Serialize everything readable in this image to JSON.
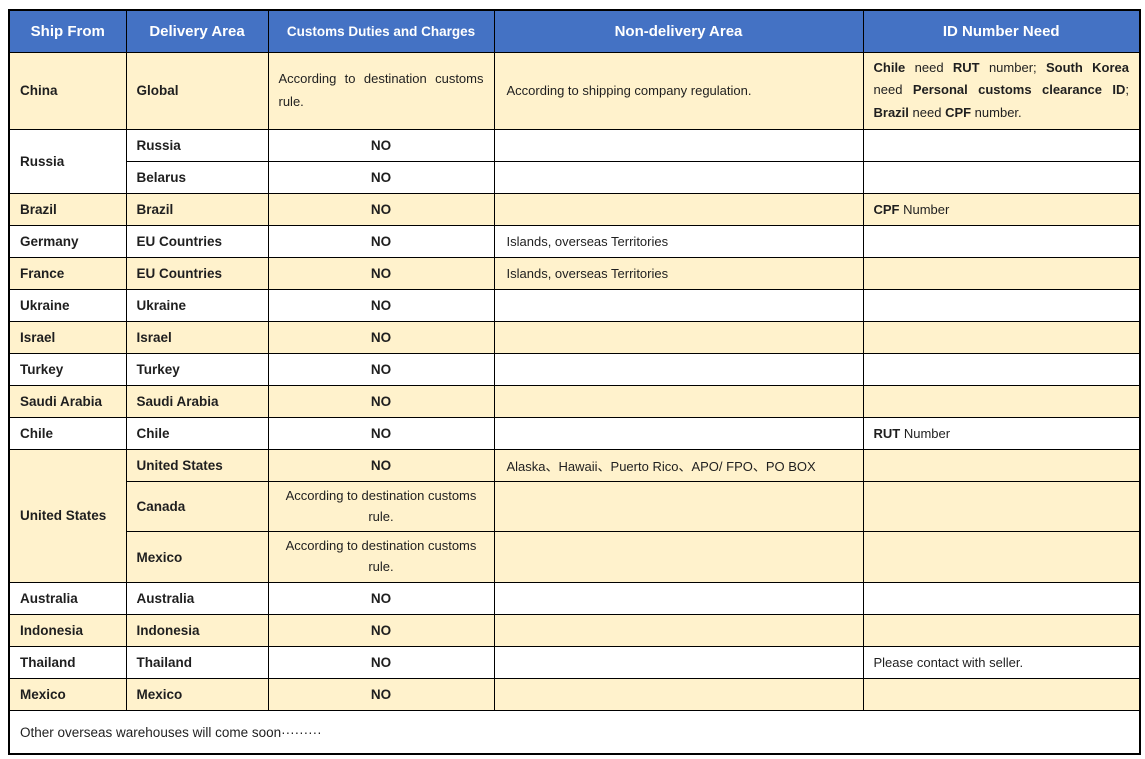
{
  "colors": {
    "header_bg": "#4472C4",
    "header_text": "#FFFFFF",
    "shaded_row_bg": "#FFF2CC",
    "white_row_bg": "#FFFFFF",
    "border": "#000000",
    "body_text": "#1F1F1F"
  },
  "table": {
    "headers": [
      "Ship From",
      "Delivery Area",
      "Customs Duties and Charges",
      "Non-delivery Area",
      "ID Number Need"
    ],
    "rows": [
      {
        "ship_from": {
          "label": "China",
          "rowspan": 1
        },
        "delivery": "Global",
        "customs": {
          "text": "According to destination customs rule.",
          "align": "justify",
          "bold": false
        },
        "non_delivery": "According to shipping company regulation.",
        "id": {
          "justify": true,
          "runs": [
            {
              "text": "Chile",
              "bold": true
            },
            {
              "text": " need ",
              "bold": false
            },
            {
              "text": "RUT",
              "bold": true
            },
            {
              "text": " number; ",
              "bold": false
            },
            {
              "text": "South Korea",
              "bold": true
            },
            {
              "text": " need ",
              "bold": false
            },
            {
              "text": "Personal customs clearance ID",
              "bold": true
            },
            {
              "text": "; ",
              "bold": false
            },
            {
              "text": "Brazil",
              "bold": true
            },
            {
              "text": " need ",
              "bold": false
            },
            {
              "text": "CPF",
              "bold": true
            },
            {
              "text": " number.",
              "bold": false
            }
          ]
        },
        "shaded": true
      },
      {
        "ship_from": {
          "label": "Russia",
          "rowspan": 2
        },
        "delivery": "Russia",
        "customs": {
          "text": "NO",
          "align": "center",
          "bold": true
        },
        "non_delivery": "",
        "id": {
          "justify": false,
          "runs": []
        },
        "shaded": false
      },
      {
        "ship_from": null,
        "delivery": "Belarus",
        "customs": {
          "text": "NO",
          "align": "center",
          "bold": true
        },
        "non_delivery": "",
        "id": {
          "justify": false,
          "runs": []
        },
        "shaded": false
      },
      {
        "ship_from": {
          "label": "Brazil",
          "rowspan": 1
        },
        "delivery": "Brazil",
        "customs": {
          "text": "NO",
          "align": "center",
          "bold": true
        },
        "non_delivery": "",
        "id": {
          "justify": false,
          "runs": [
            {
              "text": "CPF",
              "bold": true
            },
            {
              "text": " Number",
              "bold": false
            }
          ]
        },
        "shaded": true
      },
      {
        "ship_from": {
          "label": "Germany",
          "rowspan": 1
        },
        "delivery": "EU Countries",
        "customs": {
          "text": "NO",
          "align": "center",
          "bold": true
        },
        "non_delivery": "Islands, overseas Territories",
        "id": {
          "justify": false,
          "runs": []
        },
        "shaded": false
      },
      {
        "ship_from": {
          "label": "France",
          "rowspan": 1
        },
        "delivery": "EU Countries",
        "customs": {
          "text": "NO",
          "align": "center",
          "bold": true
        },
        "non_delivery": "Islands, overseas Territories",
        "id": {
          "justify": false,
          "runs": []
        },
        "shaded": true
      },
      {
        "ship_from": {
          "label": "Ukraine",
          "rowspan": 1
        },
        "delivery": "Ukraine",
        "customs": {
          "text": "NO",
          "align": "center",
          "bold": true
        },
        "non_delivery": "",
        "id": {
          "justify": false,
          "runs": []
        },
        "shaded": false
      },
      {
        "ship_from": {
          "label": "Israel",
          "rowspan": 1
        },
        "delivery": "Israel",
        "customs": {
          "text": "NO",
          "align": "center",
          "bold": true
        },
        "non_delivery": "",
        "id": {
          "justify": false,
          "runs": []
        },
        "shaded": true
      },
      {
        "ship_from": {
          "label": "Turkey",
          "rowspan": 1
        },
        "delivery": "Turkey",
        "customs": {
          "text": "NO",
          "align": "center",
          "bold": true
        },
        "non_delivery": "",
        "id": {
          "justify": false,
          "runs": []
        },
        "shaded": false
      },
      {
        "ship_from": {
          "label": "Saudi Arabia",
          "rowspan": 1
        },
        "delivery": "Saudi Arabia",
        "customs": {
          "text": "NO",
          "align": "center",
          "bold": true
        },
        "non_delivery": "",
        "id": {
          "justify": false,
          "runs": []
        },
        "shaded": true
      },
      {
        "ship_from": {
          "label": "Chile",
          "rowspan": 1
        },
        "delivery": "Chile",
        "customs": {
          "text": "NO",
          "align": "center",
          "bold": true
        },
        "non_delivery": "",
        "id": {
          "justify": false,
          "runs": [
            {
              "text": "RUT",
              "bold": true
            },
            {
              "text": " Number",
              "bold": false
            }
          ]
        },
        "shaded": false
      },
      {
        "ship_from": {
          "label": "United States",
          "rowspan": 3
        },
        "delivery": "United States",
        "customs": {
          "text": "NO",
          "align": "center",
          "bold": true
        },
        "non_delivery": "Alaska、Hawaii、Puerto Rico、APO/ FPO、PO BOX",
        "id": {
          "justify": false,
          "runs": []
        },
        "shaded": true
      },
      {
        "ship_from": null,
        "delivery": "Canada",
        "customs": {
          "text": "According to destination customs rule.",
          "align": "center-wrap",
          "bold": false
        },
        "non_delivery": "",
        "id": {
          "justify": false,
          "runs": []
        },
        "shaded": true
      },
      {
        "ship_from": null,
        "delivery": "Mexico",
        "customs": {
          "text": "According to destination customs rule.",
          "align": "center-wrap",
          "bold": false
        },
        "non_delivery": "",
        "id": {
          "justify": false,
          "runs": []
        },
        "shaded": true
      },
      {
        "ship_from": {
          "label": "Australia",
          "rowspan": 1
        },
        "delivery": "Australia",
        "customs": {
          "text": "NO",
          "align": "center",
          "bold": true
        },
        "non_delivery": "",
        "id": {
          "justify": false,
          "runs": []
        },
        "shaded": false
      },
      {
        "ship_from": {
          "label": "Indonesia",
          "rowspan": 1
        },
        "delivery": "Indonesia",
        "customs": {
          "text": "NO",
          "align": "center",
          "bold": true
        },
        "non_delivery": "",
        "id": {
          "justify": false,
          "runs": []
        },
        "shaded": true
      },
      {
        "ship_from": {
          "label": "Thailand",
          "rowspan": 1
        },
        "delivery": "Thailand",
        "customs": {
          "text": "NO",
          "align": "center",
          "bold": true
        },
        "non_delivery": "",
        "id": {
          "justify": false,
          "runs": [
            {
              "text": "Please contact with seller.",
              "bold": false
            }
          ]
        },
        "shaded": false
      },
      {
        "ship_from": {
          "label": "Mexico",
          "rowspan": 1
        },
        "delivery": "Mexico",
        "customs": {
          "text": "NO",
          "align": "center",
          "bold": true
        },
        "non_delivery": "",
        "id": {
          "justify": false,
          "runs": []
        },
        "shaded": true
      }
    ],
    "footer": "Other overseas warehouses will come soon·········"
  }
}
